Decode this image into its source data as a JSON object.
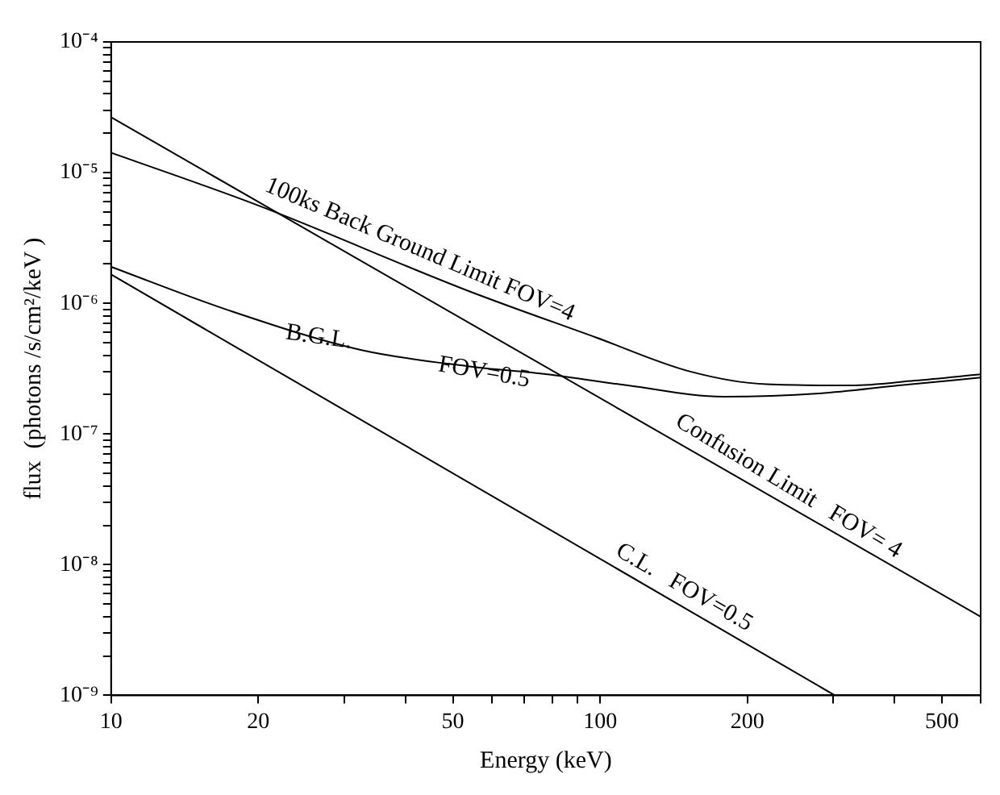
{
  "chart_data": {
    "type": "line",
    "xlabel": "Energy (keV)",
    "ylabel": "flux  (photons /s/cm²/keV )",
    "log": "xy",
    "grid": false,
    "legend": false,
    "marker": "none",
    "line_style": "solid",
    "xlim": [
      10,
      600
    ],
    "ylim": [
      1e-09,
      0.0001
    ],
    "xticks": [
      10,
      20,
      {
        "value": 30,
        "label": null
      },
      {
        "value": 40,
        "label": null
      },
      50,
      {
        "value": 60,
        "label": null
      },
      {
        "value": 70,
        "label": null
      },
      {
        "value": 80,
        "label": null
      },
      {
        "value": 90,
        "label": null
      },
      100,
      200,
      {
        "value": 300,
        "label": null
      },
      {
        "value": 400,
        "label": null
      },
      500,
      {
        "value": 600,
        "label": null
      }
    ],
    "yticks": [
      {
        "value": 1e-09,
        "label": "10⁻⁹"
      },
      {
        "value": 2e-09,
        "label": null
      },
      {
        "value": 3e-09,
        "label": null
      },
      {
        "value": 4e-09,
        "label": null
      },
      {
        "value": 5e-09,
        "label": null
      },
      {
        "value": 6e-09,
        "label": null
      },
      {
        "value": 7e-09,
        "label": null
      },
      {
        "value": 8e-09,
        "label": null
      },
      {
        "value": 9e-09,
        "label": null
      },
      {
        "value": 1e-08,
        "label": "10⁻⁸"
      },
      {
        "value": 2e-08,
        "label": null
      },
      {
        "value": 3e-08,
        "label": null
      },
      {
        "value": 4e-08,
        "label": null
      },
      {
        "value": 5e-08,
        "label": null
      },
      {
        "value": 6e-08,
        "label": null
      },
      {
        "value": 7e-08,
        "label": null
      },
      {
        "value": 8e-08,
        "label": null
      },
      {
        "value": 9e-08,
        "label": null
      },
      {
        "value": 1e-07,
        "label": "10⁻⁷"
      },
      {
        "value": 2e-07,
        "label": null
      },
      {
        "value": 3e-07,
        "label": null
      },
      {
        "value": 4e-07,
        "label": null
      },
      {
        "value": 5e-07,
        "label": null
      },
      {
        "value": 6e-07,
        "label": null
      },
      {
        "value": 7e-07,
        "label": null
      },
      {
        "value": 8e-07,
        "label": null
      },
      {
        "value": 9e-07,
        "label": null
      },
      {
        "value": 1e-06,
        "label": "10⁻⁶"
      },
      {
        "value": 2e-06,
        "label": null
      },
      {
        "value": 3e-06,
        "label": null
      },
      {
        "value": 4e-06,
        "label": null
      },
      {
        "value": 5e-06,
        "label": null
      },
      {
        "value": 6e-06,
        "label": null
      },
      {
        "value": 7e-06,
        "label": null
      },
      {
        "value": 8e-06,
        "label": null
      },
      {
        "value": 9e-06,
        "label": null
      },
      {
        "value": 1e-05,
        "label": "10⁻⁵"
      },
      {
        "value": 2e-05,
        "label": null
      },
      {
        "value": 3e-05,
        "label": null
      },
      {
        "value": 4e-05,
        "label": null
      },
      {
        "value": 5e-05,
        "label": null
      },
      {
        "value": 6e-05,
        "label": null
      },
      {
        "value": 7e-05,
        "label": null
      },
      {
        "value": 8e-05,
        "label": null
      },
      {
        "value": 9e-05,
        "label": null
      },
      {
        "value": 0.0001,
        "label": "10⁻⁴"
      }
    ],
    "series": [
      {
        "color": "#000000",
        "x": [
          10,
          20,
          53.6,
          97.8,
          153,
          219,
          326,
          440,
          600
        ],
        "values": [
          1.42e-05,
          5.6e-06,
          1.25e-06,
          5.5e-07,
          3e-07,
          2.4e-07,
          2.35e-07,
          2.56e-07,
          2.86e-07
        ]
      },
      {
        "color": "#000000",
        "x": [
          10,
          600
        ],
        "values": [
          2.65e-05,
          4e-09
        ]
      },
      {
        "color": "#000000",
        "x": [
          10,
          17.3,
          32.4,
          53.6,
          78,
          114,
          179,
          280,
          408,
          600
        ],
        "values": [
          1.9e-06,
          8.9e-07,
          4.4e-07,
          3.3e-07,
          2.86e-07,
          2.35e-07,
          1.93e-07,
          2.04e-07,
          2.35e-07,
          2.7e-07
        ]
      },
      {
        "color": "#000000",
        "x": [
          10,
          302
        ],
        "values": [
          1.66e-06,
          1e-09
        ]
      }
    ],
    "annotations": [
      "100ks Back Ground Limit FOV=4",
      "B.G.L.",
      "FOV=0.5",
      "Confusion Limit   FOV= 4",
      "C.L.   FOV=0.5"
    ]
  }
}
